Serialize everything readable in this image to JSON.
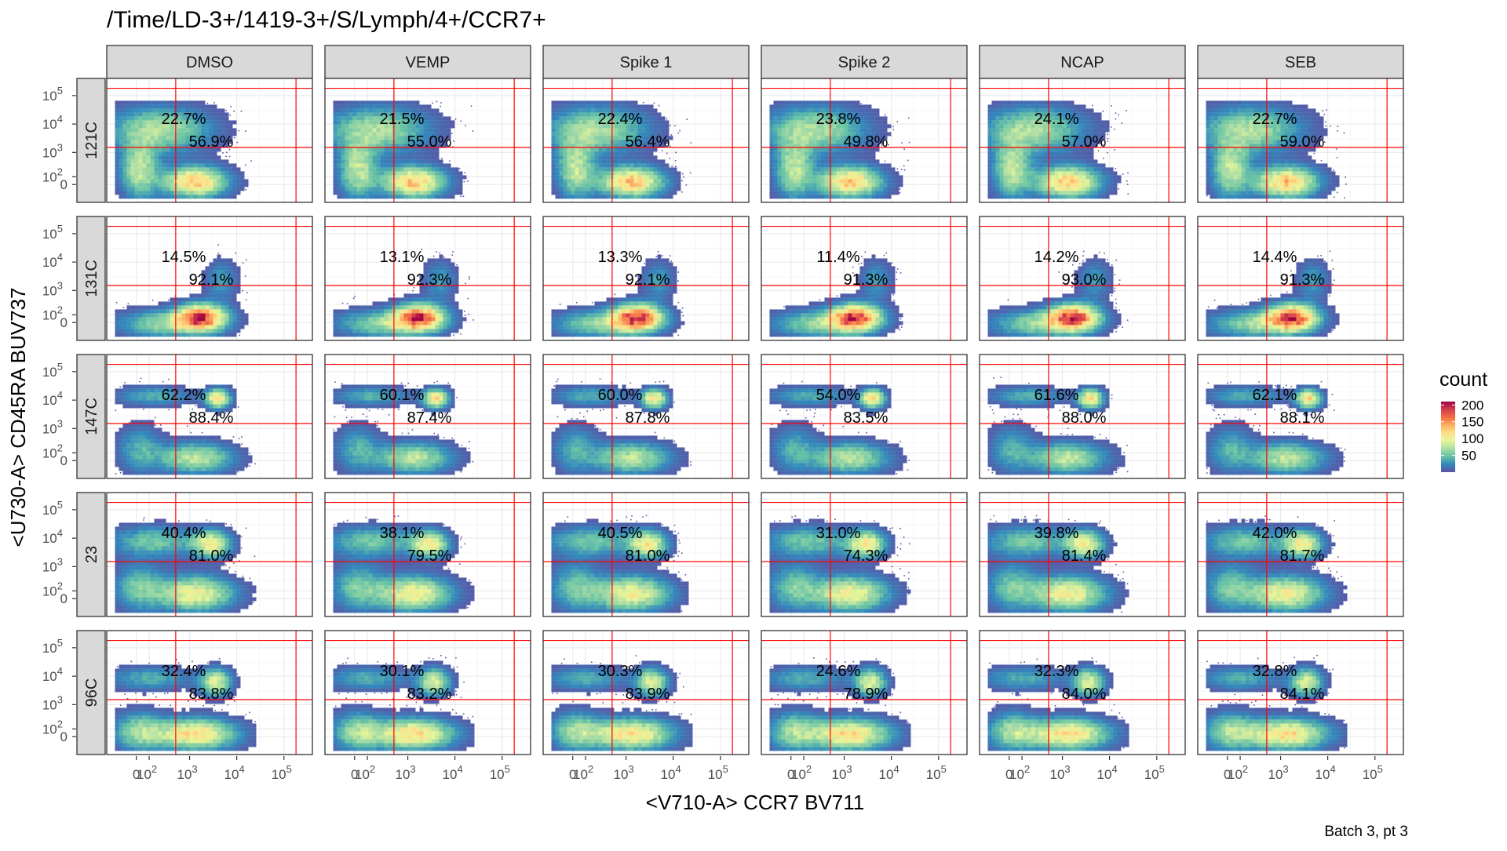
{
  "chart_data": {
    "type": "heatmap",
    "title": "/Time/LD-3+/1419-3+/S/Lymph/4+/CCR7+",
    "xlabel": "<V710-A> CCR7 BV711",
    "ylabel": "<U730-A> CD45RA BUV737",
    "caption": "Batch 3, pt 3",
    "columns": [
      "DMSO",
      "VEMP",
      "Spike 1",
      "Spike 2",
      "NCAP",
      "SEB"
    ],
    "rows": [
      "121C",
      "131C",
      "147C",
      "23",
      "96C"
    ],
    "x_ticks": [
      {
        "label": "0",
        "exp": ""
      },
      {
        "label": "10",
        "exp": "2"
      },
      {
        "label": "10",
        "exp": "3"
      },
      {
        "label": "10",
        "exp": "4"
      },
      {
        "label": "10",
        "exp": "5"
      }
    ],
    "y_ticks": [
      {
        "label": "0",
        "exp": ""
      },
      {
        "label": "10",
        "exp": "2"
      },
      {
        "label": "10",
        "exp": "3"
      },
      {
        "label": "10",
        "exp": "4"
      },
      {
        "label": "10",
        "exp": "5"
      }
    ],
    "x_scale": "biexponential (arcsinh-like)",
    "y_scale": "biexponential (arcsinh-like)",
    "gates": {
      "x_thresholds": [
        500,
        180000
      ],
      "y_thresholds": [
        1500,
        180000
      ]
    },
    "legend": {
      "title": "count",
      "ticks": [
        50,
        100,
        150,
        200
      ],
      "range": [
        0,
        210
      ],
      "position": "right"
    },
    "colormap": [
      "#5e4fa2",
      "#3288bd",
      "#66c2a5",
      "#abdda4",
      "#e6f598",
      "#fee08b",
      "#fdae61",
      "#f46d43",
      "#d53e4f",
      "#9e0142"
    ],
    "gate_color": "#ff0000",
    "percent_upper": [
      [
        "22.7%",
        "21.5%",
        "22.4%",
        "23.8%",
        "24.1%",
        "22.7%"
      ],
      [
        "14.5%",
        "13.1%",
        "13.3%",
        "11.4%",
        "14.2%",
        "14.4%"
      ],
      [
        "62.2%",
        "60.1%",
        "60.0%",
        "54.0%",
        "61.6%",
        "62.1%"
      ],
      [
        "40.4%",
        "38.1%",
        "40.5%",
        "31.0%",
        "39.8%",
        "42.0%"
      ],
      [
        "32.4%",
        "30.1%",
        "30.3%",
        "24.6%",
        "32.3%",
        "32.8%"
      ]
    ],
    "percent_lower": [
      [
        "56.9%",
        "55.0%",
        "56.4%",
        "49.8%",
        "57.0%",
        "59.0%"
      ],
      [
        "92.1%",
        "92.3%",
        "92.1%",
        "91.3%",
        "93.0%",
        "91.3%"
      ],
      [
        "88.4%",
        "87.4%",
        "87.8%",
        "83.5%",
        "88.0%",
        "88.1%"
      ],
      [
        "81.0%",
        "79.5%",
        "81.0%",
        "74.3%",
        "81.4%",
        "81.7%"
      ],
      [
        "83.8%",
        "83.2%",
        "83.9%",
        "78.9%",
        "84.0%",
        "84.1%"
      ]
    ]
  }
}
